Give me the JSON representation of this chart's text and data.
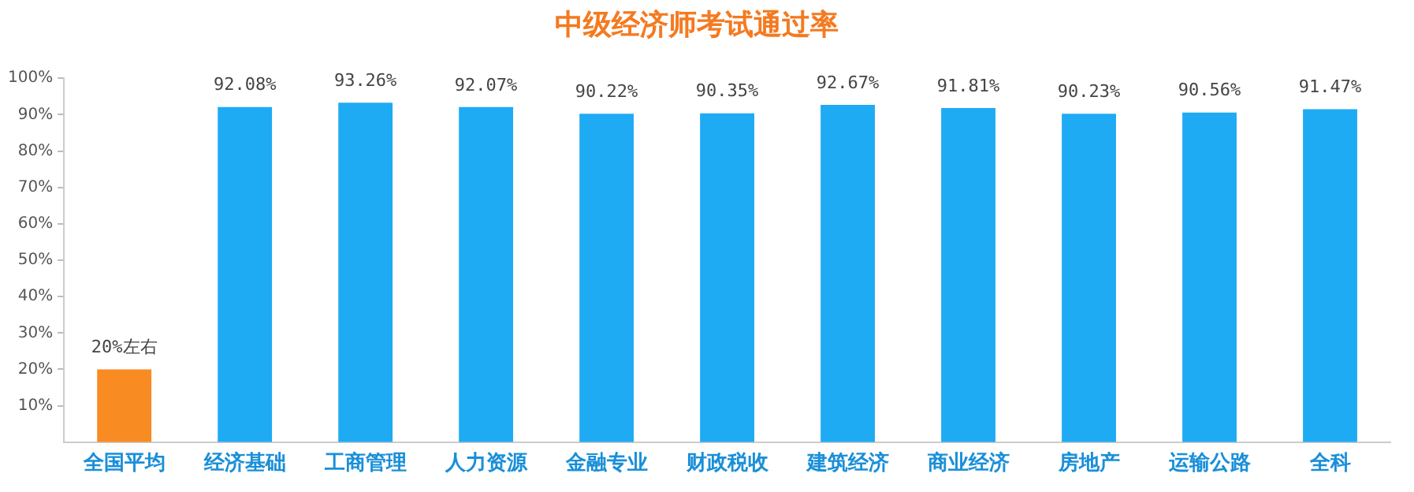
{
  "chart_data": {
    "type": "bar",
    "title": "中级经济师考试通过率",
    "categories": [
      "全国平均",
      "经济基础",
      "工商管理",
      "人力资源",
      "金融专业",
      "财政税收",
      "建筑经济",
      "商业经济",
      "房地产",
      "运输公路",
      "全科"
    ],
    "values": [
      20,
      92.08,
      93.26,
      92.07,
      90.22,
      90.35,
      92.67,
      91.81,
      90.23,
      90.56,
      91.47
    ],
    "colors": [
      "#f98b23",
      "#1fabf3",
      "#1fabf3",
      "#1fabf3",
      "#1fabf3",
      "#1fabf3",
      "#1fabf3",
      "#1fabf3",
      "#1fabf3",
      "#1fabf3",
      "#1fabf3"
    ],
    "value_labels": [
      "20%左右",
      "92.08%",
      "93.26%",
      "92.07%",
      "90.22%",
      "90.35%",
      "92.67%",
      "91.81%",
      "90.23%",
      "90.56%",
      "91.47%"
    ],
    "ylim": [
      0,
      100
    ],
    "yticks": [
      {
        "value": 10,
        "label": "10%"
      },
      {
        "value": 20,
        "label": "20%"
      },
      {
        "value": 30,
        "label": "30%"
      },
      {
        "value": 40,
        "label": "40%"
      },
      {
        "value": 50,
        "label": "50%"
      },
      {
        "value": 60,
        "label": "60%"
      },
      {
        "value": 70,
        "label": "70%"
      },
      {
        "value": 80,
        "label": "80%"
      },
      {
        "value": 90,
        "label": "90%"
      },
      {
        "value": 100,
        "label": "100%"
      }
    ],
    "grid": false
  }
}
